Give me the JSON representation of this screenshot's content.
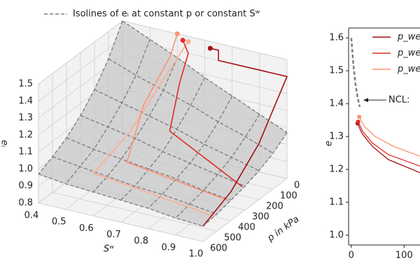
{
  "chart_data": [
    {
      "type": "surface3d",
      "legend_label": "Isolines of eᵢ at constant p or constant Sʷ",
      "xlabel": "Sʷ",
      "ylabel": "p in kPa",
      "zlabel": "eᵢ",
      "xlim": [
        0.4,
        1.0
      ],
      "ylim": [
        0,
        600
      ],
      "zlim": [
        0.8,
        1.5
      ],
      "xticks": [
        0.4,
        0.5,
        0.6,
        0.7,
        0.8,
        0.9,
        {
          "value": 1.0,
          "label": "1.0"
        }
      ],
      "yticks": [
        0,
        100,
        200,
        300,
        400,
        500,
        600
      ],
      "zticks": [
        0.8,
        0.9,
        {
          "value": 1.0,
          "label": "1.0"
        },
        1.1,
        1.2,
        1.3,
        1.4,
        1.5
      ],
      "isoline_color": "#7f7f7f",
      "surface": {
        "x": [
          0.4,
          0.5,
          0.6,
          0.7,
          0.8,
          0.9,
          1.0
        ],
        "y": [
          0,
          100,
          200,
          300,
          400,
          500,
          600
        ],
        "z": [
          [
            1.5,
            1.43,
            1.36,
            1.28,
            1.21,
            1.14,
            1.07
          ],
          [
            1.34,
            1.28,
            1.23,
            1.18,
            1.12,
            1.07,
            1.01
          ],
          [
            1.22,
            1.18,
            1.14,
            1.1,
            1.05,
            1.01,
            0.97
          ],
          [
            1.13,
            1.1,
            1.07,
            1.03,
            1.0,
            0.97,
            0.94
          ],
          [
            1.06,
            1.03,
            1.01,
            0.99,
            0.97,
            0.94,
            0.92
          ],
          [
            1.01,
            0.99,
            0.97,
            0.95,
            0.94,
            0.92,
            0.9
          ],
          [
            0.97,
            0.95,
            0.94,
            0.93,
            0.92,
            0.9,
            0.89
          ]
        ]
      },
      "series": [
        {
          "color": "#fcae91",
          "x": [
            0.64,
            0.62,
            0.58,
            0.55,
            1.0
          ],
          "y": [
            0,
            100,
            300,
            500,
            520
          ],
          "z": [
            1.47,
            1.35,
            1.1,
            0.97,
            0.9
          ]
        },
        {
          "color": "#fc9272",
          "x": [
            0.6,
            0.6,
            0.58,
            0.62,
            1.0
          ],
          "y": [
            0,
            50,
            200,
            400,
            420
          ],
          "z": [
            1.5,
            1.4,
            1.2,
            1.0,
            0.93
          ]
        },
        {
          "color": "#de2d26",
          "x": [
            0.62,
            0.64,
            0.66,
            0.7,
            1.0
          ],
          "y": [
            0,
            0,
            100,
            250,
            320
          ],
          "z": [
            1.47,
            1.4,
            1.3,
            1.12,
            0.95
          ]
        },
        {
          "color": "#a50f15",
          "x": [
            0.72,
            0.75,
            0.75,
            1.0,
            1.0,
            1.0,
            1.0
          ],
          "y": [
            0,
            0,
            0,
            0,
            200,
            400,
            600
          ],
          "z": [
            1.46,
            1.46,
            1.4,
            1.4,
            1.13,
            0.97,
            0.89
          ]
        }
      ]
    },
    {
      "type": "line",
      "ylabel": "e",
      "annotation": "NCL:",
      "xlim": [
        -5,
        130
      ],
      "ylim": [
        0.97,
        1.63
      ],
      "xticks": [
        0,
        100
      ],
      "yticks": [
        {
          "value": 1.0,
          "label": "1.0"
        },
        1.1,
        1.2,
        1.3,
        1.4,
        1.5,
        1.6
      ],
      "ncl": {
        "color": "#7f7f7f",
        "x": [
          0,
          4,
          8,
          12,
          16
        ],
        "values": [
          1.6,
          1.52,
          1.46,
          1.42,
          1.39
        ]
      },
      "series": [
        {
          "name": "p_wet =",
          "color": "#a50f15",
          "x": [
            12,
            20,
            40,
            70,
            130
          ],
          "values": [
            1.34,
            1.31,
            1.27,
            1.23,
            1.19
          ]
        },
        {
          "name": "p_wet =",
          "color": "#de2d26",
          "x": [
            13,
            22,
            40,
            70,
            130
          ],
          "values": [
            1.345,
            1.315,
            1.28,
            1.245,
            1.21
          ]
        },
        {
          "name": "p_wet =",
          "color": "#fc9272",
          "x": [
            15,
            25,
            45,
            80,
            130
          ],
          "values": [
            1.36,
            1.33,
            1.3,
            1.27,
            1.24
          ]
        }
      ]
    }
  ]
}
